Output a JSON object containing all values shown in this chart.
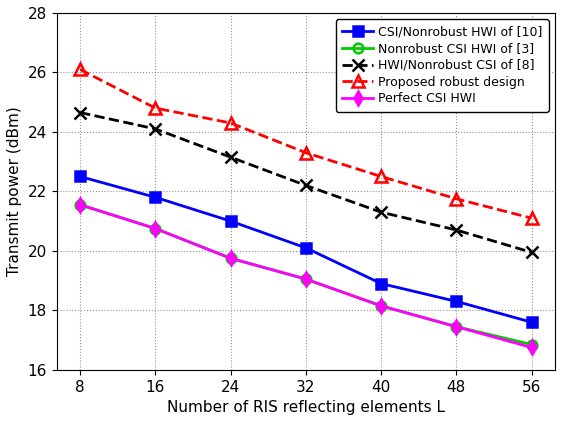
{
  "x": [
    8,
    16,
    24,
    32,
    40,
    48,
    56
  ],
  "series": [
    {
      "label": "CSI/Nonrobust HWI of [10]",
      "values": [
        22.5,
        21.8,
        21.0,
        20.1,
        18.9,
        18.3,
        17.6
      ],
      "color": "#0000FF",
      "linestyle": "-",
      "marker": "s",
      "markerfacecolor": "#0000FF",
      "markeredgecolor": "#0000FF",
      "markersize": 7,
      "linewidth": 2.0,
      "dashed": false
    },
    {
      "label": "Nonrobust CSI HWI of [3]",
      "values": [
        21.55,
        20.75,
        19.75,
        19.05,
        18.15,
        17.45,
        16.85
      ],
      "color": "#00CC00",
      "linestyle": "-",
      "marker": "o",
      "markerfacecolor": "none",
      "markeredgecolor": "#00CC00",
      "markersize": 7,
      "linewidth": 2.0,
      "dashed": false
    },
    {
      "label": "HWI/Nonrobust CSI of [8]",
      "values": [
        24.65,
        24.1,
        23.15,
        22.2,
        21.3,
        20.7,
        19.95
      ],
      "color": "#000000",
      "linestyle": "--",
      "marker": "x",
      "markerfacecolor": "#000000",
      "markeredgecolor": "#000000",
      "markersize": 9,
      "linewidth": 2.0,
      "dashed": true
    },
    {
      "label": "Proposed robust design",
      "values": [
        26.1,
        24.8,
        24.3,
        23.3,
        22.5,
        21.75,
        21.1
      ],
      "color": "#FF0000",
      "linestyle": "--",
      "marker": "^",
      "markerfacecolor": "none",
      "markeredgecolor": "#FF0000",
      "markersize": 9,
      "linewidth": 2.0,
      "dashed": true
    },
    {
      "label": "Perfect CSI HWI",
      "values": [
        21.55,
        20.75,
        19.75,
        19.05,
        18.15,
        17.45,
        16.75
      ],
      "color": "#FF00FF",
      "linestyle": "-",
      "marker": "d",
      "markerfacecolor": "#FF00FF",
      "markeredgecolor": "#FF00FF",
      "markersize": 7,
      "linewidth": 2.0,
      "dashed": false
    }
  ],
  "xlabel": "Number of RIS reflecting elements L",
  "ylabel": "Transmit power (dBm)",
  "xlim": [
    5.5,
    58.5
  ],
  "ylim": [
    16,
    28
  ],
  "yticks": [
    16,
    18,
    20,
    22,
    24,
    26,
    28
  ],
  "xticks": [
    8,
    16,
    24,
    32,
    40,
    48,
    56
  ],
  "grid": true,
  "legend_loc": "upper right",
  "figsize": [
    5.62,
    4.22
  ],
  "dpi": 100,
  "tick_fontsize": 11,
  "label_fontsize": 11,
  "legend_fontsize": 9
}
